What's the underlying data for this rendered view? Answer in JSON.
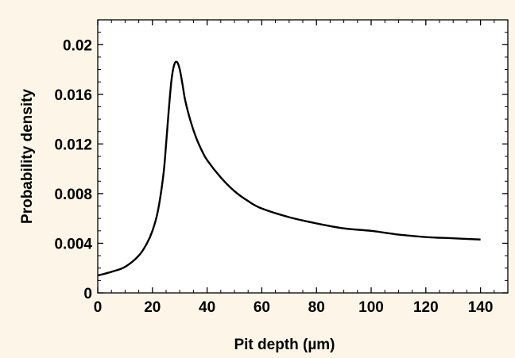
{
  "chart_data": {
    "type": "line",
    "title": "",
    "xlabel": "Pit depth (µm)",
    "ylabel": "Probability density",
    "xlim": [
      0,
      150
    ],
    "ylim": [
      0,
      0.022
    ],
    "xticks": [
      0,
      20,
      40,
      60,
      80,
      100,
      120,
      140
    ],
    "xtick_labels": [
      "0",
      "20",
      "40",
      "60",
      "80",
      "100",
      "120",
      "140"
    ],
    "yticks": [
      0,
      0.004,
      0.008,
      0.012,
      0.016,
      0.02
    ],
    "ytick_labels": [
      "0",
      "0.004",
      "0.008",
      "0.012",
      "0.016",
      "0.02"
    ],
    "grid": false,
    "colors": {
      "background": "#fdf6e8",
      "plot_area": "#ffffff",
      "line": "#000000"
    },
    "series": [
      {
        "x": [
          0,
          5,
          10,
          15,
          18,
          20,
          22,
          24,
          25,
          26,
          27,
          28,
          29,
          30,
          31,
          32,
          34,
          36,
          38,
          40,
          45,
          50,
          55,
          60,
          70,
          80,
          90,
          100,
          110,
          120,
          130,
          140
        ],
        "y": [
          0.0014,
          0.0017,
          0.0021,
          0.003,
          0.004,
          0.005,
          0.0066,
          0.0095,
          0.012,
          0.0148,
          0.0172,
          0.0184,
          0.0186,
          0.018,
          0.0168,
          0.0155,
          0.0138,
          0.0125,
          0.0115,
          0.0107,
          0.0093,
          0.0082,
          0.0074,
          0.0068,
          0.0061,
          0.0056,
          0.0052,
          0.005,
          0.0047,
          0.0045,
          0.0044,
          0.0043
        ]
      }
    ]
  }
}
